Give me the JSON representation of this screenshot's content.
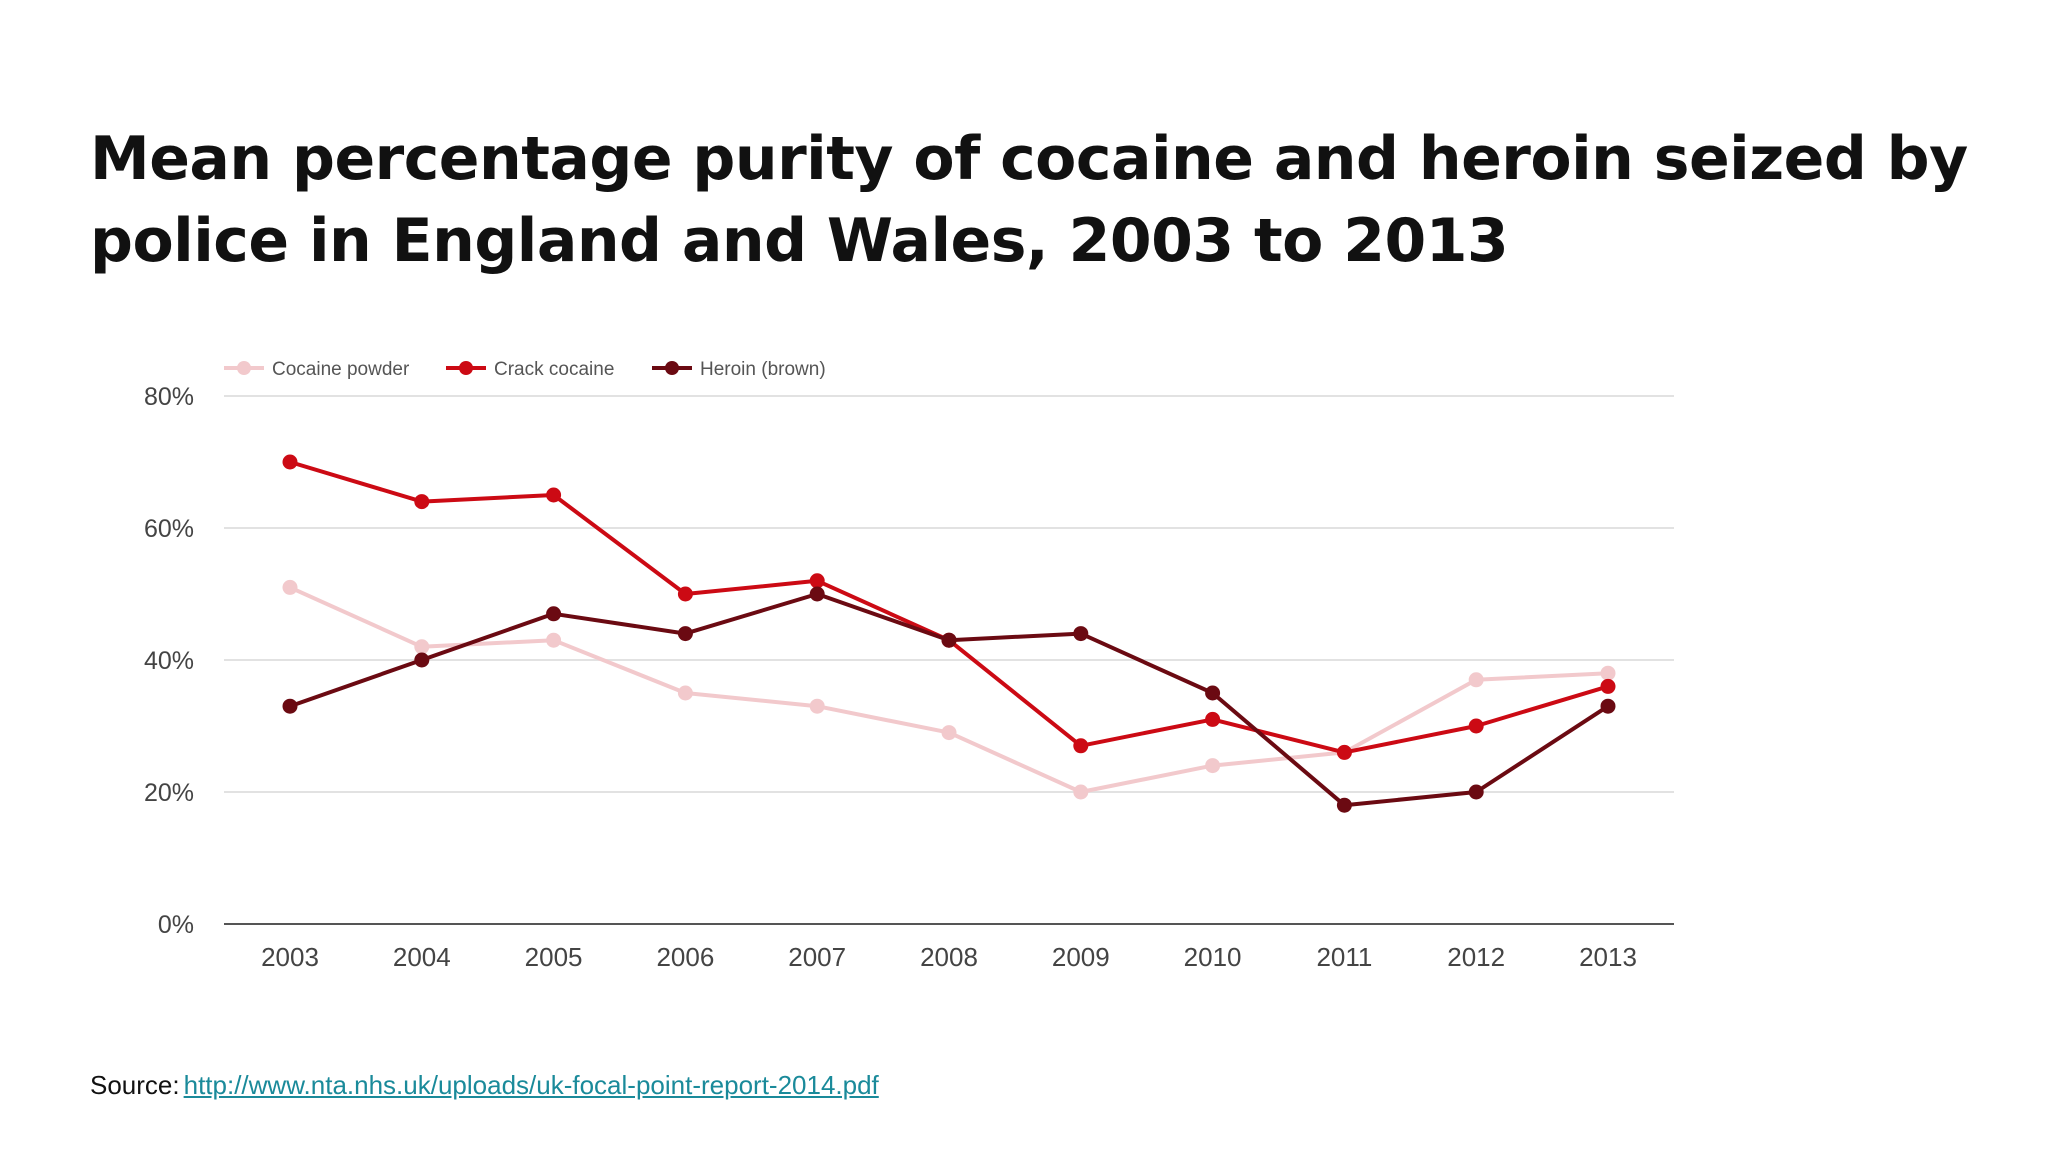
{
  "slide": {
    "title": "Mean percentage purity of cocaine and heroin seized by police in England and Wales, 2003 to 2013",
    "source_label": "Source:",
    "source_link": "http://www.nta.nhs.uk/uploads/uk-focal-point-report-2014.pdf"
  },
  "chart_data": {
    "type": "line",
    "x": [
      "2003",
      "2004",
      "2005",
      "2006",
      "2007",
      "2008",
      "2009",
      "2010",
      "2011",
      "2012",
      "2013"
    ],
    "series": [
      {
        "name": "Cocaine powder",
        "color": "#f2c9cc",
        "values": [
          51,
          42,
          43,
          35,
          33,
          29,
          20,
          24,
          26,
          37,
          38
        ]
      },
      {
        "name": "Crack cocaine",
        "color": "#cc0a14",
        "values": [
          70,
          64,
          65,
          50,
          52,
          43,
          27,
          31,
          26,
          30,
          36
        ]
      },
      {
        "name": "Heroin (brown)",
        "color": "#6b0a12",
        "values": [
          33,
          40,
          47,
          44,
          50,
          43,
          44,
          35,
          18,
          20,
          33
        ]
      }
    ],
    "yticks": [
      "0%",
      "20%",
      "40%",
      "60%",
      "80%"
    ],
    "ylim": [
      0,
      80
    ],
    "grid": true,
    "legend_position": "top-left"
  }
}
